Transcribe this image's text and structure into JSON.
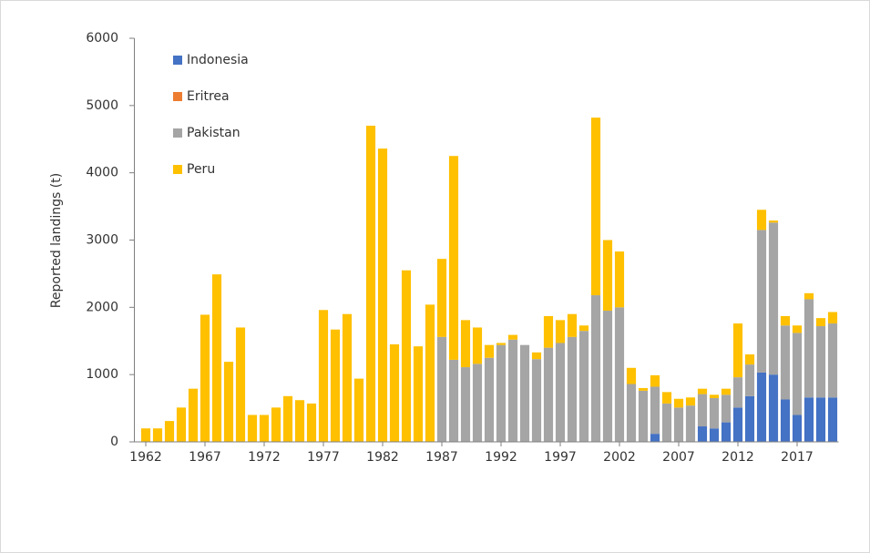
{
  "chart_data": {
    "type": "stacked_bar",
    "ylabel": "Reported landings (t)",
    "categories": [
      "1962",
      null,
      null,
      null,
      null,
      "1967",
      null,
      null,
      null,
      null,
      "1972",
      null,
      null,
      null,
      null,
      "1977",
      null,
      null,
      null,
      null,
      "1982",
      null,
      null,
      null,
      null,
      "1987",
      null,
      null,
      null,
      null,
      "1992",
      null,
      null,
      null,
      null,
      "1997",
      null,
      null,
      null,
      null,
      "2002",
      null,
      null,
      null,
      null,
      "2007",
      null,
      null,
      null,
      null,
      "2012",
      null,
      null,
      null,
      null,
      "2017",
      null,
      null,
      null
    ],
    "series": [
      {
        "name": "Indonesia",
        "color": "#4472c4",
        "values": [
          0,
          0,
          0,
          0,
          0,
          0,
          0,
          0,
          0,
          0,
          0,
          0,
          0,
          0,
          0,
          0,
          0,
          0,
          0,
          0,
          0,
          0,
          0,
          0,
          0,
          0,
          0,
          0,
          0,
          0,
          0,
          0,
          0,
          0,
          0,
          0,
          0,
          0,
          0,
          0,
          0,
          0,
          0,
          120,
          0,
          0,
          0,
          230,
          200,
          290,
          510,
          680,
          1030,
          1000,
          630,
          400,
          660,
          660,
          660
        ]
      },
      {
        "name": "Eritrea",
        "color": "#ed7d31",
        "values": [
          0,
          0,
          0,
          0,
          0,
          0,
          0,
          0,
          0,
          0,
          0,
          0,
          0,
          0,
          0,
          0,
          0,
          0,
          0,
          0,
          0,
          0,
          0,
          0,
          0,
          0,
          0,
          0,
          0,
          0,
          0,
          0,
          0,
          0,
          0,
          0,
          0,
          0,
          0,
          0,
          0,
          0,
          0,
          0,
          0,
          0,
          0,
          0,
          0,
          0,
          0,
          0,
          0,
          0,
          0,
          0,
          0,
          0,
          0
        ]
      },
      {
        "name": "Pakistan",
        "color": "#a5a5a5",
        "values": [
          0,
          0,
          0,
          0,
          0,
          0,
          0,
          0,
          0,
          0,
          0,
          0,
          0,
          0,
          0,
          0,
          0,
          0,
          0,
          0,
          0,
          0,
          0,
          0,
          0,
          1560,
          1220,
          1110,
          1160,
          1250,
          1440,
          1520,
          1440,
          1230,
          1400,
          1470,
          1560,
          1650,
          2180,
          1950,
          2000,
          860,
          760,
          700,
          570,
          510,
          540,
          480,
          450,
          410,
          450,
          470,
          2120,
          2260,
          1100,
          1220,
          1460,
          1060,
          1100
        ]
      },
      {
        "name": "Peru",
        "color": "#ffc000",
        "values": [
          200,
          200,
          310,
          510,
          790,
          1890,
          2490,
          1190,
          1700,
          400,
          400,
          510,
          680,
          620,
          570,
          1960,
          1670,
          1900,
          940,
          4700,
          4360,
          1450,
          2550,
          1420,
          2040,
          1160,
          3030,
          700,
          540,
          190,
          30,
          70,
          0,
          100,
          470,
          340,
          340,
          80,
          2640,
          1050,
          830,
          240,
          40,
          170,
          170,
          130,
          120,
          80,
          50,
          90,
          800,
          150,
          300,
          30,
          140,
          110,
          90,
          120,
          170
        ]
      }
    ],
    "ylim": [
      0,
      6000
    ],
    "yticks": [
      0,
      1000,
      2000,
      3000,
      4000,
      5000,
      6000
    ],
    "grid": false,
    "legend_position": "upper left"
  }
}
